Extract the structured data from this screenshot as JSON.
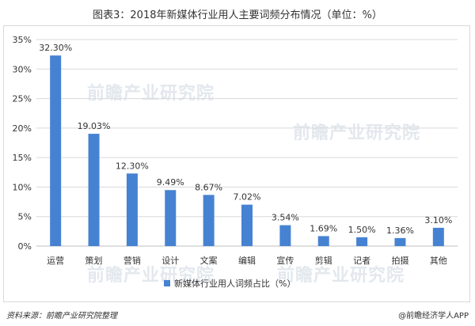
{
  "title": "图表3：2018年新媒体行业用人主要词频分布情况（单位：%）",
  "source": "资料来源：前瞻产业研究院整理",
  "brand": "@前瞻经济学人APP",
  "watermark": "前瞻产业研究院",
  "colors": {
    "bar": "#4682d2",
    "grid": "#d9d9d9",
    "axis": "#bfbfbf"
  },
  "chart_data": {
    "type": "bar",
    "categories": [
      "运营",
      "策划",
      "营销",
      "设计",
      "文案",
      "编辑",
      "宣传",
      "剪辑",
      "记者",
      "拍摄",
      "其他"
    ],
    "series": [
      {
        "name": "新媒体行业用人词频占比（%）",
        "values": [
          32.3,
          19.03,
          12.3,
          9.49,
          8.67,
          7.02,
          3.54,
          1.69,
          1.5,
          1.36,
          3.1
        ]
      }
    ],
    "data_labels": [
      "32.30%",
      "19.03%",
      "12.30%",
      "9.49%",
      "8.67%",
      "7.02%",
      "3.54%",
      "1.69%",
      "1.50%",
      "1.36%",
      "3.10%"
    ],
    "yticks": [
      "0%",
      "5%",
      "10%",
      "15%",
      "20%",
      "25%",
      "30%",
      "35%"
    ],
    "ylim": [
      0,
      35
    ],
    "grid": true,
    "legend_position": "bottom"
  }
}
